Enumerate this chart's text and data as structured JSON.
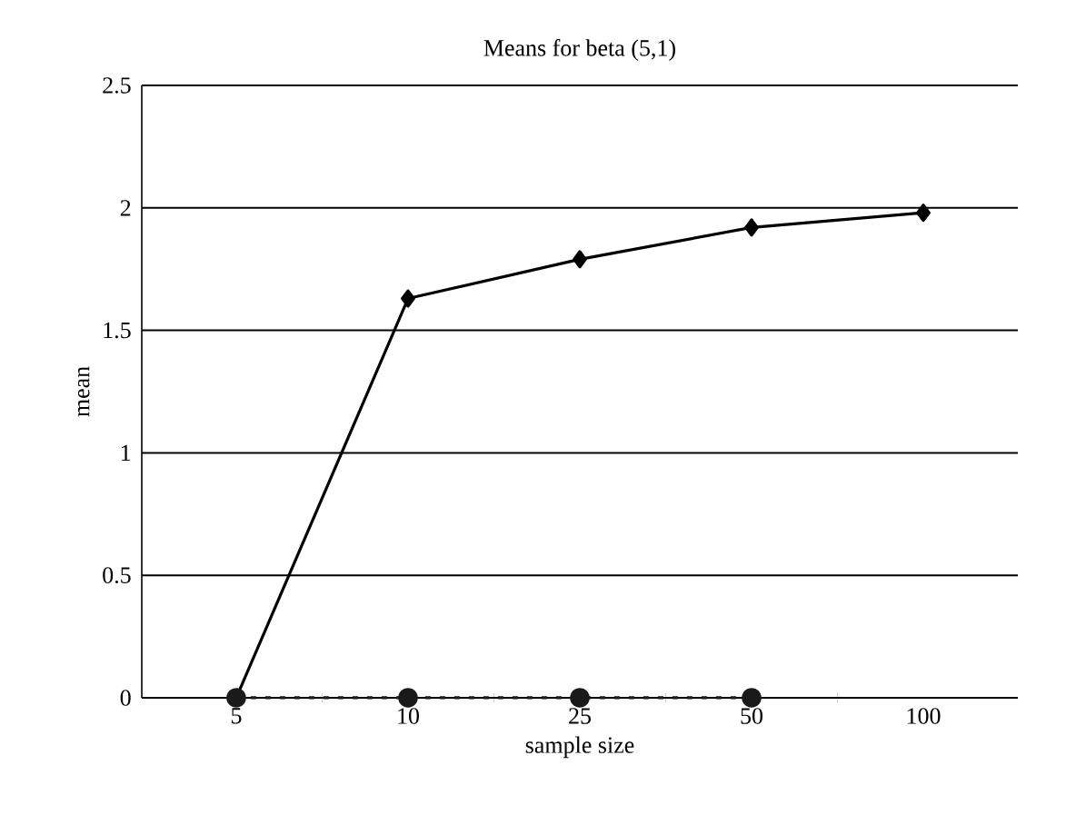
{
  "chart_data": {
    "type": "line",
    "title": "Means for beta (5,1)",
    "xlabel": "sample size",
    "ylabel": "mean",
    "categories": [
      "5",
      "10",
      "25",
      "50",
      "100"
    ],
    "series": [
      {
        "color": "#000000",
        "values": [
          0,
          1.63,
          1.79,
          1.92,
          1.98
        ],
        "marker": "diamond",
        "line_style": "solid"
      },
      {
        "color": "#1a1a1a",
        "values": [
          0,
          0,
          0,
          0,
          null
        ],
        "marker": "circle",
        "line_style": "dashed"
      }
    ],
    "ylim": [
      0,
      2.5
    ],
    "yticks": [
      0,
      0.5,
      1,
      1.5,
      2,
      2.5
    ],
    "grid": "y"
  }
}
